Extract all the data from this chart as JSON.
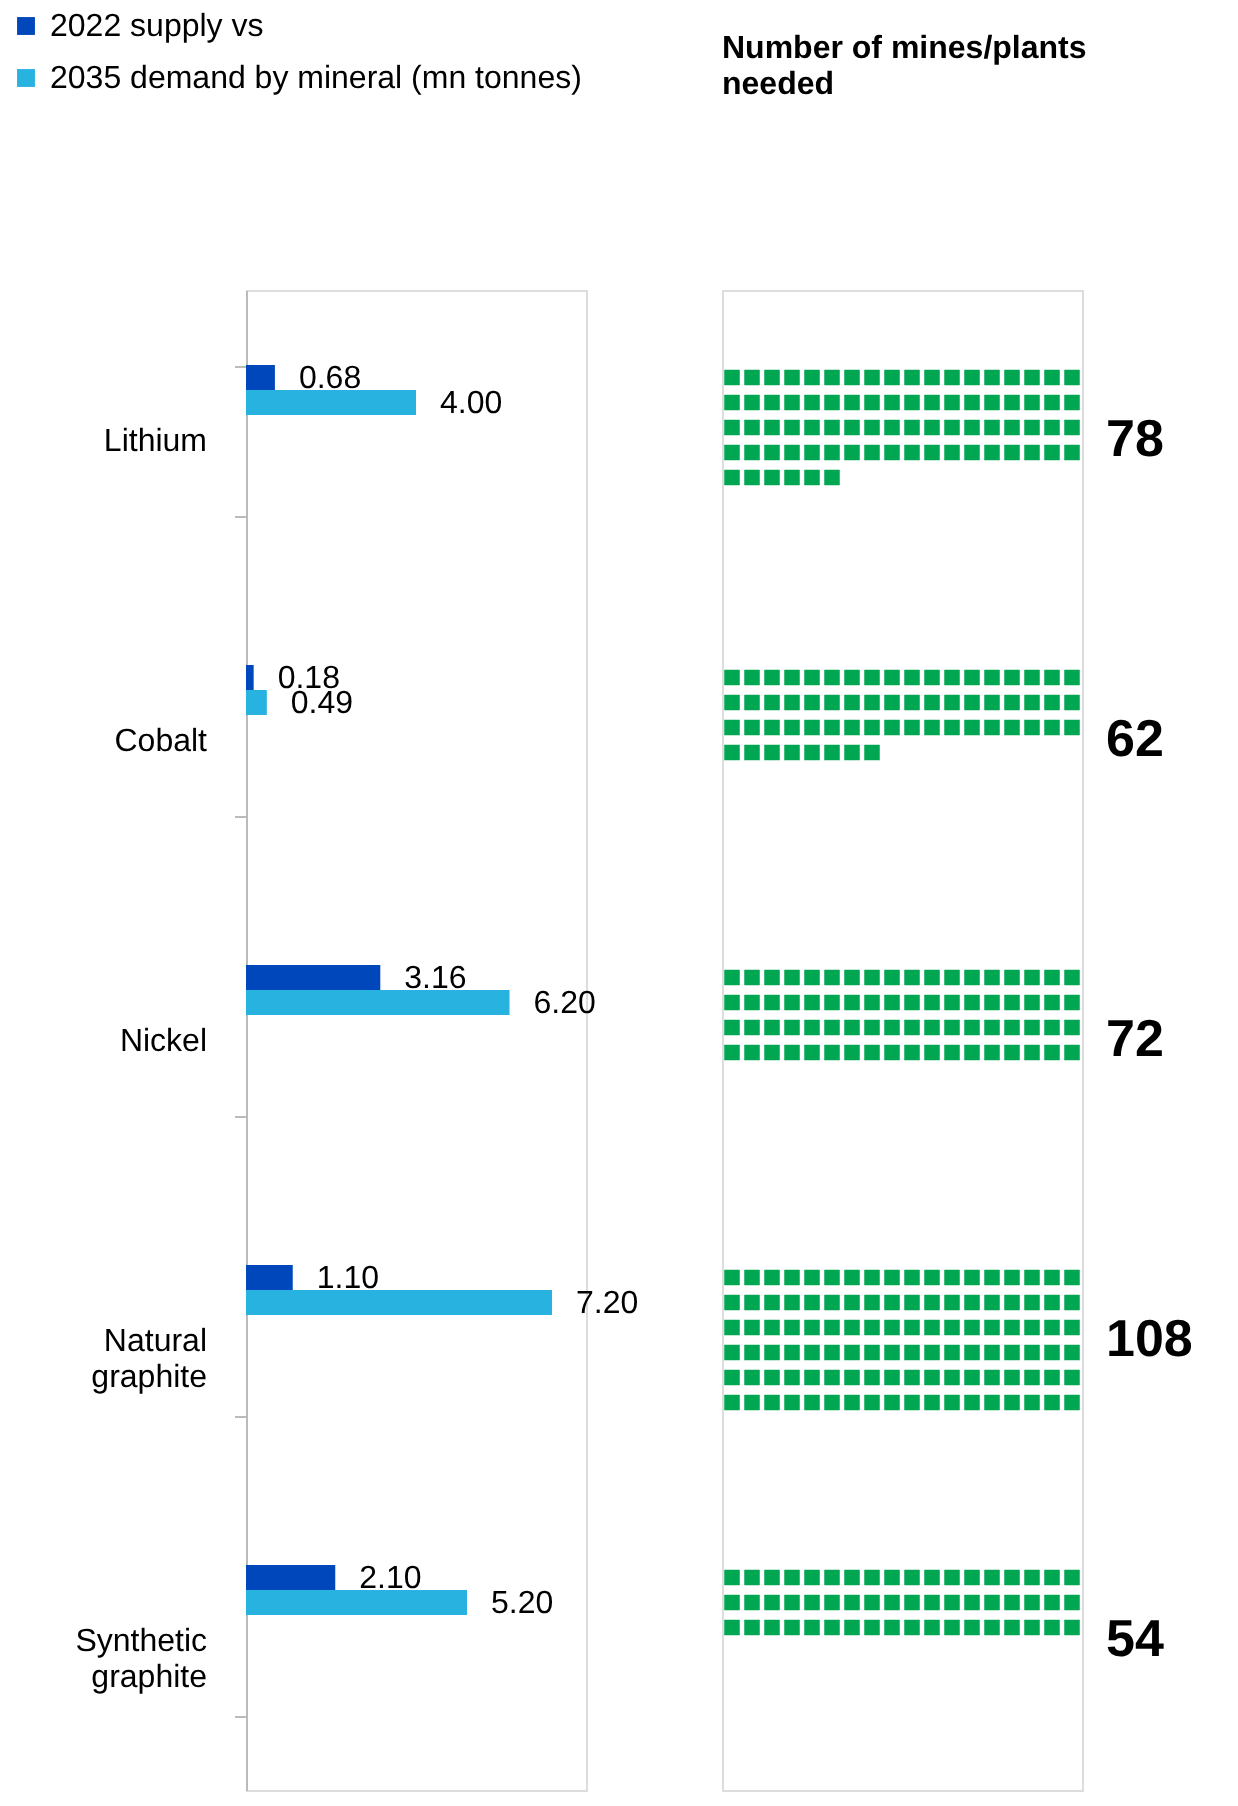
{
  "chart_data": [
    {
      "type": "bar",
      "orientation": "horizontal",
      "categories": [
        "Lithium",
        "Cobalt",
        "Nickel",
        "Natural graphite",
        "Synthetic graphite"
      ],
      "series": [
        {
          "name": "2022 supply vs",
          "color": "#0047bb",
          "values": [
            0.68,
            0.18,
            3.16,
            1.1,
            2.1
          ],
          "value_labels": [
            "0.68",
            "0.18",
            "3.16",
            "1.10",
            "2.10"
          ]
        },
        {
          "name": "2035 demand by mineral (mn tonnes)",
          "color": "#27b2df",
          "values": [
            4.0,
            0.49,
            6.2,
            7.2,
            5.2
          ],
          "value_labels": [
            "4.00",
            "0.49",
            "6.20",
            "7.20",
            "5.20"
          ]
        }
      ],
      "legend": "top left",
      "data_labels": true,
      "grid": false
    },
    {
      "type": "other",
      "title": "Number of mines/plants needed",
      "categories": [
        null,
        null,
        null,
        null,
        null
      ],
      "values": [
        78,
        62,
        72,
        108,
        54
      ],
      "colors": [
        "#00a651",
        "#00a651",
        "#00a651",
        "#00a651",
        "#00a651"
      ],
      "data_labels": true
    }
  ]
}
